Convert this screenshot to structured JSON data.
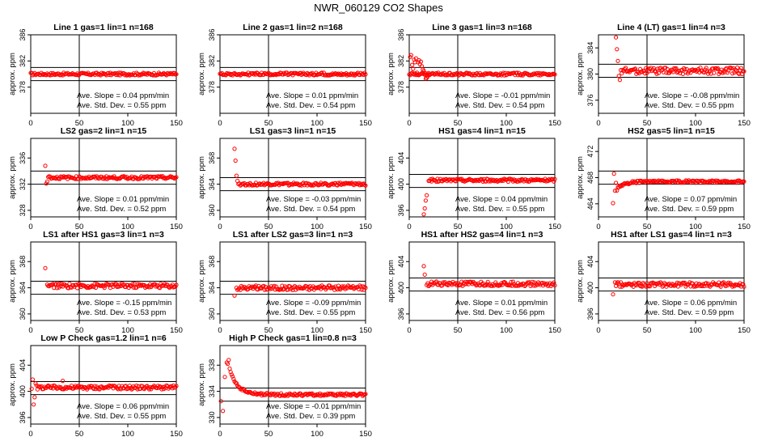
{
  "title": "NWR_060129  CO2 Shapes",
  "ylabel": "approx. ppm",
  "slope_label": "Ave. Slope =",
  "slope_unit": "ppm/min",
  "std_label": "Ave. Std. Dev. =",
  "std_unit": "ppm",
  "colors": {
    "points": "#ff0000",
    "axes": "#000000"
  },
  "chart_data": [
    {
      "type": "scatter",
      "title": "Line 1 gas=1 lin=1 n=168",
      "xlim": [
        0,
        150
      ],
      "xticks": [
        0,
        50,
        100,
        150
      ],
      "ylim": [
        374,
        386
      ],
      "yticks": [
        378,
        382,
        386
      ],
      "hlines": [
        381,
        379
      ],
      "vline": 50,
      "slope": "0.04",
      "std": "0.55",
      "shape": {
        "kind": "flat",
        "start": 0,
        "level": 380,
        "noise": 0.2
      }
    },
    {
      "type": "scatter",
      "title": "Line 2 gas=1 lin=2 n=168",
      "xlim": [
        0,
        150
      ],
      "xticks": [
        0,
        50,
        100,
        150
      ],
      "ylim": [
        374,
        386
      ],
      "yticks": [
        378,
        382,
        386
      ],
      "hlines": [
        381,
        379
      ],
      "vline": 50,
      "slope": "0.01",
      "std": "0.54",
      "shape": {
        "kind": "flat",
        "start": 0,
        "level": 380,
        "noise": 0.2
      }
    },
    {
      "type": "scatter",
      "title": "Line 3 gas=1 lin=3 n=168",
      "xlim": [
        0,
        150
      ],
      "xticks": [
        0,
        50,
        100,
        150
      ],
      "ylim": [
        374,
        386
      ],
      "yticks": [
        378,
        382,
        386
      ],
      "hlines": [
        381,
        379
      ],
      "vline": 50,
      "slope": "-0.01",
      "std": "0.54",
      "shape": {
        "kind": "flat",
        "start": 0,
        "level": 380,
        "noise": 0.2,
        "prefix": [
          [
            1,
            382.6
          ],
          [
            2,
            382.9
          ],
          [
            3,
            381.4
          ],
          [
            4,
            380.8
          ],
          [
            5,
            382.2
          ],
          [
            6,
            381.8
          ],
          [
            7,
            382.4
          ],
          [
            8,
            380.2
          ],
          [
            9,
            381.8
          ],
          [
            10,
            382.1
          ],
          [
            11,
            381.5
          ],
          [
            12,
            381.9
          ],
          [
            13,
            381.2
          ],
          [
            14,
            380.7
          ],
          [
            15,
            380.5
          ],
          [
            16,
            379.9
          ],
          [
            17,
            379.3
          ],
          [
            18,
            379.4
          ],
          [
            19,
            379.6
          ],
          [
            20,
            379.9
          ]
        ]
      }
    },
    {
      "type": "scatter",
      "title": "Line 4 (LT) gas=1 lin=4 n=3",
      "xlim": [
        0,
        150
      ],
      "xticks": [
        0,
        50,
        100,
        150
      ],
      "ylim": [
        374,
        386
      ],
      "yticks": [
        376,
        380,
        384
      ],
      "hlines": [
        381.5,
        379.5
      ],
      "vline": 50,
      "slope": "-0.08",
      "std": "0.55",
      "shape": {
        "kind": "flat",
        "start": 24,
        "level": 380.5,
        "noise": 0.5,
        "prefix": [
          [
            18,
            385.6
          ],
          [
            19,
            383.8
          ],
          [
            20,
            382
          ],
          [
            21,
            379.7
          ],
          [
            22,
            379.1
          ],
          [
            23,
            380.6
          ]
        ]
      }
    },
    {
      "type": "scatter",
      "title": "LS2 gas=2 lin=1 n=15",
      "xlim": [
        0,
        150
      ],
      "xticks": [
        0,
        50,
        100,
        150
      ],
      "ylim": [
        327,
        339
      ],
      "yticks": [
        328,
        332,
        336
      ],
      "hlines": [
        334,
        332
      ],
      "vline": 50,
      "slope": "0.01",
      "std": "0.52",
      "shape": {
        "kind": "flat",
        "start": 20,
        "level": 333,
        "noise": 0.22,
        "prefix": [
          [
            15,
            334.8
          ],
          [
            16,
            332.1
          ],
          [
            17,
            332.4
          ],
          [
            18,
            333.1
          ],
          [
            19,
            333.2
          ]
        ]
      }
    },
    {
      "type": "scatter",
      "title": "LS1 gas=3 lin=1 n=15",
      "xlim": [
        0,
        150
      ],
      "xticks": [
        0,
        50,
        100,
        150
      ],
      "ylim": [
        359,
        371
      ],
      "yticks": [
        360,
        364,
        368
      ],
      "hlines": [
        365,
        363
      ],
      "vline": 50,
      "slope": "-0.03",
      "std": "0.54",
      "shape": {
        "kind": "flat",
        "start": 19,
        "level": 364,
        "noise": 0.22,
        "prefix": [
          [
            15,
            369.4
          ],
          [
            16,
            367.6
          ],
          [
            17,
            365.3
          ],
          [
            18,
            364.5
          ]
        ]
      }
    },
    {
      "type": "scatter",
      "title": "HS1 gas=4 lin=1 n=15",
      "xlim": [
        0,
        150
      ],
      "xticks": [
        0,
        50,
        100,
        150
      ],
      "ylim": [
        395,
        407
      ],
      "yticks": [
        396,
        400,
        404
      ],
      "hlines": [
        401.5,
        399.5
      ],
      "vline": 50,
      "slope": "0.04",
      "std": "0.55",
      "shape": {
        "kind": "flat",
        "start": 20,
        "level": 400.6,
        "noise": 0.22,
        "prefix": [
          [
            15,
            395.4
          ],
          [
            16,
            396.3
          ],
          [
            17,
            397.5
          ],
          [
            18,
            398.3
          ]
        ]
      }
    },
    {
      "type": "scatter",
      "title": "HS2 gas=5 lin=1 n=15",
      "xlim": [
        0,
        150
      ],
      "xticks": [
        0,
        50,
        100,
        150
      ],
      "ylim": [
        462,
        474
      ],
      "yticks": [
        464,
        468,
        472
      ],
      "hlines": [
        469,
        467
      ],
      "vline": 50,
      "slope": "0.07",
      "std": "0.59",
      "shape": {
        "kind": "rise",
        "start": 19,
        "from": 466.2,
        "to": 467.4,
        "tau": 7,
        "noise": 0.18,
        "prefix": [
          [
            15,
            464.1
          ],
          [
            16,
            468.6
          ],
          [
            17,
            466
          ],
          [
            18,
            467.2
          ]
        ]
      }
    },
    {
      "type": "scatter",
      "title": "LS1 after HS1 gas=3 lin=1 n=3",
      "xlim": [
        0,
        150
      ],
      "xticks": [
        0,
        50,
        100,
        150
      ],
      "ylim": [
        359,
        371
      ],
      "yticks": [
        360,
        364,
        368
      ],
      "hlines": [
        365,
        363
      ],
      "vline": 50,
      "slope": "-0.15",
      "std": "0.53",
      "shape": {
        "kind": "flat",
        "start": 17,
        "level": 364.3,
        "noise": 0.35,
        "prefix": [
          [
            15,
            367
          ]
        ]
      }
    },
    {
      "type": "scatter",
      "title": "LS1 after LS2 gas=3 lin=1 n=3",
      "xlim": [
        0,
        150
      ],
      "xticks": [
        0,
        50,
        100,
        150
      ],
      "ylim": [
        359,
        371
      ],
      "yticks": [
        360,
        364,
        368
      ],
      "hlines": [
        365,
        363
      ],
      "vline": 50,
      "slope": "-0.09",
      "std": "0.55",
      "shape": {
        "kind": "flat",
        "start": 17,
        "level": 364,
        "noise": 0.35,
        "prefix": [
          [
            15,
            362.8
          ]
        ]
      }
    },
    {
      "type": "scatter",
      "title": "HS1 after HS2 gas=4 lin=1 n=3",
      "xlim": [
        0,
        150
      ],
      "xticks": [
        0,
        50,
        100,
        150
      ],
      "ylim": [
        395,
        407
      ],
      "yticks": [
        396,
        400,
        404
      ],
      "hlines": [
        401.5,
        399.5
      ],
      "vline": 50,
      "slope": "0.01",
      "std": "0.56",
      "shape": {
        "kind": "flat",
        "start": 18,
        "level": 400.6,
        "noise": 0.35,
        "prefix": [
          [
            15,
            403.3
          ],
          [
            16,
            402
          ]
        ]
      }
    },
    {
      "type": "scatter",
      "title": "HS1 after LS1 gas=4 lin=1 n=3",
      "xlim": [
        0,
        150
      ],
      "xticks": [
        0,
        50,
        100,
        150
      ],
      "ylim": [
        395,
        407
      ],
      "yticks": [
        396,
        400,
        404
      ],
      "hlines": [
        401.5,
        399.5
      ],
      "vline": 50,
      "slope": "0.06",
      "std": "0.59",
      "shape": {
        "kind": "flat",
        "start": 17,
        "level": 400.5,
        "noise": 0.35,
        "prefix": [
          [
            15,
            399
          ]
        ]
      }
    },
    {
      "type": "scatter",
      "title": "Low P Check gas=1.2 lin=1 n=6",
      "xlim": [
        0,
        150
      ],
      "xticks": [
        0,
        50,
        100,
        150
      ],
      "ylim": [
        395,
        407
      ],
      "yticks": [
        396,
        400,
        404
      ],
      "hlines": [
        401.5,
        399.5
      ],
      "vline": 50,
      "slope": "0.06",
      "std": "0.55",
      "shape": {
        "kind": "flat",
        "start": 8,
        "level": 400.6,
        "noise": 0.3,
        "prefix": [
          [
            1,
            400.4
          ],
          [
            2,
            401.8
          ],
          [
            3,
            398
          ],
          [
            4,
            399.1
          ],
          [
            5,
            401.2
          ],
          [
            6,
            400.9
          ],
          [
            7,
            400.3
          ]
        ],
        "extra": [
          [
            33,
            401.6
          ]
        ]
      }
    },
    {
      "type": "scatter",
      "title": "High P Check gas=1 lin=0.8 n=3",
      "xlim": [
        0,
        150
      ],
      "xticks": [
        0,
        50,
        100,
        150
      ],
      "ylim": [
        329,
        341
      ],
      "yticks": [
        330,
        334,
        338
      ],
      "hlines": [
        334.5,
        332.5
      ],
      "vline": 50,
      "slope": "-0.01",
      "std": "0.39",
      "shape": {
        "kind": "decay",
        "start": 10,
        "from": 337.5,
        "to": 333.5,
        "tau": 8,
        "noise": 0.2,
        "prefix": [
          [
            1,
            332.5
          ],
          [
            3,
            331
          ],
          [
            5,
            336.2
          ],
          [
            7,
            338.4
          ],
          [
            8,
            338.2
          ],
          [
            9,
            338.8
          ]
        ]
      }
    }
  ]
}
